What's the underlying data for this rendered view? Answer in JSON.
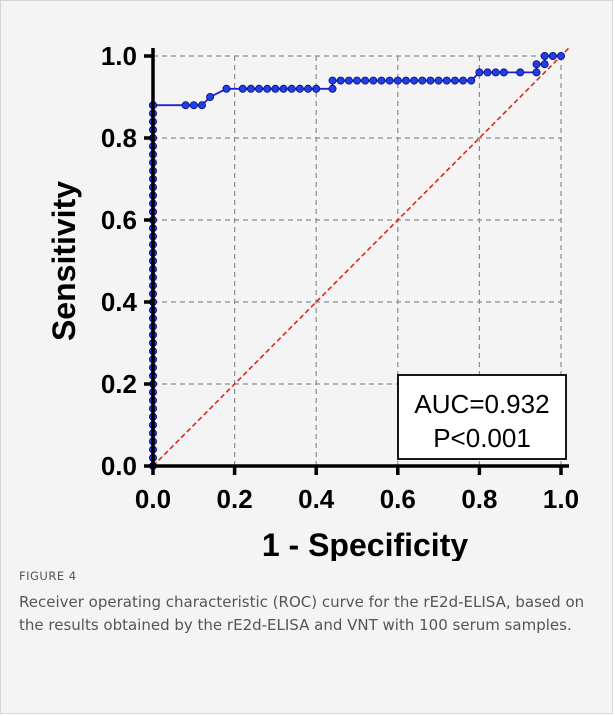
{
  "figure": {
    "label": "FIGURE 4",
    "caption": "Receiver operating characteristic (ROC) curve for the rE2d-ELISA, based on the results obtained by the rE2d-ELISA and VNT with 100 serum samples."
  },
  "colors": {
    "background": "#f4f4f4",
    "curve": "#1f1fd6",
    "marker_fill": "#1f3fe0",
    "diagonal": "#e0261e",
    "grid": "#8c8c8c",
    "axis": "#000000"
  },
  "chart_data": {
    "type": "line",
    "title": "",
    "xlabel": "1 - Specificity",
    "ylabel": "Sensitivity",
    "xlim": [
      0,
      1
    ],
    "ylim": [
      0,
      1
    ],
    "xticks": [
      0.0,
      0.2,
      0.4,
      0.6,
      0.8,
      1.0
    ],
    "yticks": [
      0.0,
      0.2,
      0.4,
      0.6,
      0.8,
      1.0
    ],
    "xtick_labels": [
      "0.0",
      "0.2",
      "0.4",
      "0.6",
      "0.8",
      "1.0"
    ],
    "ytick_labels": [
      "0.0",
      "0.2",
      "0.4",
      "0.6",
      "0.8",
      "1.0"
    ],
    "grid": true,
    "annotation": {
      "lines": [
        "AUC=0.932",
        "P<0.001"
      ],
      "position": "bottom-right"
    },
    "reference_line": {
      "style": "dashed",
      "from": [
        0,
        0
      ],
      "to": [
        1,
        1
      ]
    },
    "series": [
      {
        "x": [
          0,
          0,
          0,
          0,
          0,
          0,
          0,
          0,
          0,
          0,
          0,
          0,
          0,
          0,
          0,
          0,
          0,
          0,
          0,
          0,
          0,
          0,
          0,
          0,
          0,
          0,
          0,
          0,
          0,
          0,
          0,
          0,
          0,
          0,
          0,
          0,
          0,
          0,
          0,
          0,
          0,
          0,
          0,
          0,
          0,
          0,
          0.08,
          0.1,
          0.12,
          0.14,
          0.18,
          0.22,
          0.24,
          0.26,
          0.28,
          0.3,
          0.32,
          0.34,
          0.36,
          0.38,
          0.4,
          0.44,
          0.44,
          0.46,
          0.48,
          0.5,
          0.52,
          0.54,
          0.56,
          0.58,
          0.6,
          0.62,
          0.64,
          0.66,
          0.68,
          0.7,
          0.72,
          0.74,
          0.76,
          0.78,
          0.8,
          0.82,
          0.84,
          0.86,
          0.9,
          0.94,
          0.94,
          0.96,
          0.96,
          0.98,
          1.0
        ],
        "y": [
          0,
          0.02,
          0.04,
          0.06,
          0.08,
          0.1,
          0.12,
          0.14,
          0.16,
          0.18,
          0.2,
          0.22,
          0.24,
          0.26,
          0.28,
          0.3,
          0.32,
          0.34,
          0.36,
          0.38,
          0.4,
          0.42,
          0.44,
          0.46,
          0.48,
          0.5,
          0.52,
          0.54,
          0.56,
          0.58,
          0.6,
          0.62,
          0.64,
          0.66,
          0.68,
          0.7,
          0.72,
          0.74,
          0.76,
          0.78,
          0.8,
          0.82,
          0.84,
          0.86,
          0.88,
          0.88,
          0.88,
          0.88,
          0.88,
          0.9,
          0.92,
          0.92,
          0.92,
          0.92,
          0.92,
          0.92,
          0.92,
          0.92,
          0.92,
          0.92,
          0.92,
          0.92,
          0.94,
          0.94,
          0.94,
          0.94,
          0.94,
          0.94,
          0.94,
          0.94,
          0.94,
          0.94,
          0.94,
          0.94,
          0.94,
          0.94,
          0.94,
          0.94,
          0.94,
          0.94,
          0.96,
          0.96,
          0.96,
          0.96,
          0.96,
          0.96,
          0.98,
          0.98,
          1.0,
          1.0,
          1.0
        ]
      }
    ]
  }
}
